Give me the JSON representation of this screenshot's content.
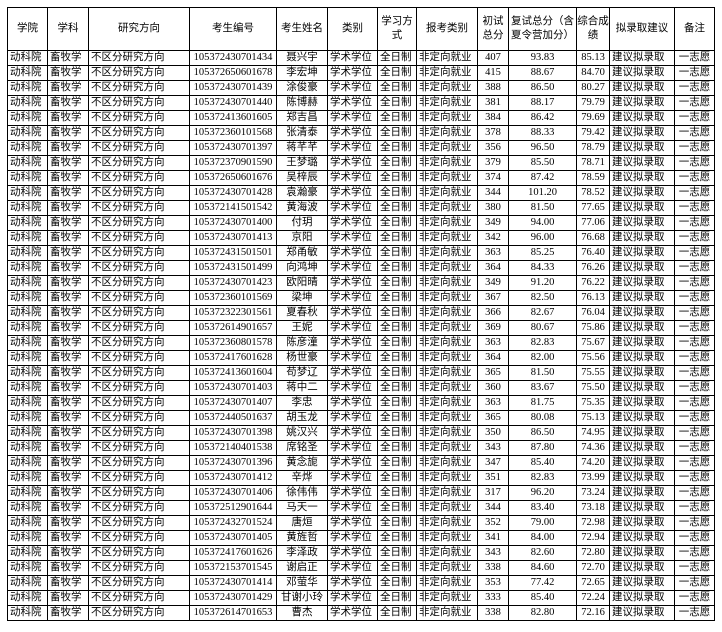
{
  "headers": [
    "学院",
    "学科",
    "研究方向",
    "考生编号",
    "考生姓名",
    "类别",
    "学习方式",
    "报考类别",
    "初试总分",
    "复试总分（含夏令营加分）",
    "综合成绩",
    "拟录取建议",
    "备注"
  ],
  "rows": [
    [
      "动科院",
      "畜牧学",
      "不区分研究方向",
      "105372430701434",
      "聂兴宇",
      "学术学位",
      "全日制",
      "非定向就业",
      "407",
      "93.83",
      "85.13",
      "建议拟录取",
      "一志愿"
    ],
    [
      "动科院",
      "畜牧学",
      "不区分研究方向",
      "105372650601678",
      "李宏坤",
      "学术学位",
      "全日制",
      "非定向就业",
      "415",
      "88.67",
      "84.70",
      "建议拟录取",
      "一志愿"
    ],
    [
      "动科院",
      "畜牧学",
      "不区分研究方向",
      "105372430701439",
      "涂俊豪",
      "学术学位",
      "全日制",
      "非定向就业",
      "388",
      "86.50",
      "80.27",
      "建议拟录取",
      "一志愿"
    ],
    [
      "动科院",
      "畜牧学",
      "不区分研究方向",
      "105372430701440",
      "陈博赫",
      "学术学位",
      "全日制",
      "非定向就业",
      "381",
      "88.17",
      "79.79",
      "建议拟录取",
      "一志愿"
    ],
    [
      "动科院",
      "畜牧学",
      "不区分研究方向",
      "105372413601605",
      "郑吉昌",
      "学术学位",
      "全日制",
      "非定向就业",
      "384",
      "86.42",
      "79.69",
      "建议拟录取",
      "一志愿"
    ],
    [
      "动科院",
      "畜牧学",
      "不区分研究方向",
      "105372360101568",
      "张清泰",
      "学术学位",
      "全日制",
      "非定向就业",
      "378",
      "88.33",
      "79.42",
      "建议拟录取",
      "一志愿"
    ],
    [
      "动科院",
      "畜牧学",
      "不区分研究方向",
      "105372430701397",
      "蒋芊芊",
      "学术学位",
      "全日制",
      "非定向就业",
      "356",
      "96.50",
      "78.79",
      "建议拟录取",
      "一志愿"
    ],
    [
      "动科院",
      "畜牧学",
      "不区分研究方向",
      "105372370901590",
      "王梦璐",
      "学术学位",
      "全日制",
      "非定向就业",
      "379",
      "85.50",
      "78.71",
      "建议拟录取",
      "一志愿"
    ],
    [
      "动科院",
      "畜牧学",
      "不区分研究方向",
      "105372650601676",
      "吴梓辰",
      "学术学位",
      "全日制",
      "非定向就业",
      "374",
      "87.42",
      "78.59",
      "建议拟录取",
      "一志愿"
    ],
    [
      "动科院",
      "畜牧学",
      "不区分研究方向",
      "105372430701428",
      "袁瀚豪",
      "学术学位",
      "全日制",
      "非定向就业",
      "344",
      "101.20",
      "78.52",
      "建议拟录取",
      "一志愿"
    ],
    [
      "动科院",
      "畜牧学",
      "不区分研究方向",
      "105372141501542",
      "黄海波",
      "学术学位",
      "全日制",
      "非定向就业",
      "380",
      "81.50",
      "77.65",
      "建议拟录取",
      "一志愿"
    ],
    [
      "动科院",
      "畜牧学",
      "不区分研究方向",
      "105372430701400",
      "付玥",
      "学术学位",
      "全日制",
      "非定向就业",
      "349",
      "94.00",
      "77.06",
      "建议拟录取",
      "一志愿"
    ],
    [
      "动科院",
      "畜牧学",
      "不区分研究方向",
      "105372430701413",
      "京阳",
      "学术学位",
      "全日制",
      "非定向就业",
      "342",
      "96.00",
      "76.68",
      "建议拟录取",
      "一志愿"
    ],
    [
      "动科院",
      "畜牧学",
      "不区分研究方向",
      "105372431501501",
      "郑甬敏",
      "学术学位",
      "全日制",
      "非定向就业",
      "363",
      "85.25",
      "76.40",
      "建议拟录取",
      "一志愿"
    ],
    [
      "动科院",
      "畜牧学",
      "不区分研究方向",
      "105372431501499",
      "向鸿坤",
      "学术学位",
      "全日制",
      "非定向就业",
      "364",
      "84.33",
      "76.26",
      "建议拟录取",
      "一志愿"
    ],
    [
      "动科院",
      "畜牧学",
      "不区分研究方向",
      "105372430701423",
      "欧阳晴",
      "学术学位",
      "全日制",
      "非定向就业",
      "349",
      "91.20",
      "76.22",
      "建议拟录取",
      "一志愿"
    ],
    [
      "动科院",
      "畜牧学",
      "不区分研究方向",
      "105372360101569",
      "梁坤",
      "学术学位",
      "全日制",
      "非定向就业",
      "367",
      "82.50",
      "76.13",
      "建议拟录取",
      "一志愿"
    ],
    [
      "动科院",
      "畜牧学",
      "不区分研究方向",
      "105372322301561",
      "夏春秋",
      "学术学位",
      "全日制",
      "非定向就业",
      "366",
      "82.67",
      "76.04",
      "建议拟录取",
      "一志愿"
    ],
    [
      "动科院",
      "畜牧学",
      "不区分研究方向",
      "105372614901657",
      "王妮",
      "学术学位",
      "全日制",
      "非定向就业",
      "369",
      "80.67",
      "75.86",
      "建议拟录取",
      "一志愿"
    ],
    [
      "动科院",
      "畜牧学",
      "不区分研究方向",
      "105372360801578",
      "陈彦潼",
      "学术学位",
      "全日制",
      "非定向就业",
      "363",
      "82.83",
      "75.67",
      "建议拟录取",
      "一志愿"
    ],
    [
      "动科院",
      "畜牧学",
      "不区分研究方向",
      "105372417601628",
      "杨世豪",
      "学术学位",
      "全日制",
      "非定向就业",
      "364",
      "82.00",
      "75.56",
      "建议拟录取",
      "一志愿"
    ],
    [
      "动科院",
      "畜牧学",
      "不区分研究方向",
      "105372413601604",
      "苟梦辽",
      "学术学位",
      "全日制",
      "非定向就业",
      "365",
      "81.50",
      "75.55",
      "建议拟录取",
      "一志愿"
    ],
    [
      "动科院",
      "畜牧学",
      "不区分研究方向",
      "105372430701403",
      "蒋中二",
      "学术学位",
      "全日制",
      "非定向就业",
      "360",
      "83.67",
      "75.50",
      "建议拟录取",
      "一志愿"
    ],
    [
      "动科院",
      "畜牧学",
      "不区分研究方向",
      "105372430701407",
      "李忠",
      "学术学位",
      "全日制",
      "非定向就业",
      "363",
      "81.75",
      "75.35",
      "建议拟录取",
      "一志愿"
    ],
    [
      "动科院",
      "畜牧学",
      "不区分研究方向",
      "105372440501637",
      "胡玉龙",
      "学术学位",
      "全日制",
      "非定向就业",
      "365",
      "80.08",
      "75.13",
      "建议拟录取",
      "一志愿"
    ],
    [
      "动科院",
      "畜牧学",
      "不区分研究方向",
      "105372430701398",
      "姚汉兴",
      "学术学位",
      "全日制",
      "非定向就业",
      "350",
      "86.50",
      "74.95",
      "建议拟录取",
      "一志愿"
    ],
    [
      "动科院",
      "畜牧学",
      "不区分研究方向",
      "105372140401538",
      "席铭圣",
      "学术学位",
      "全日制",
      "非定向就业",
      "343",
      "87.80",
      "74.36",
      "建议拟录取",
      "一志愿"
    ],
    [
      "动科院",
      "畜牧学",
      "不区分研究方向",
      "105372430701396",
      "黄念旎",
      "学术学位",
      "全日制",
      "非定向就业",
      "347",
      "85.40",
      "74.20",
      "建议拟录取",
      "一志愿"
    ],
    [
      "动科院",
      "畜牧学",
      "不区分研究方向",
      "105372430701412",
      "辛烨",
      "学术学位",
      "全日制",
      "非定向就业",
      "351",
      "82.83",
      "73.99",
      "建议拟录取",
      "一志愿"
    ],
    [
      "动科院",
      "畜牧学",
      "不区分研究方向",
      "105372430701406",
      "徐伟伟",
      "学术学位",
      "全日制",
      "非定向就业",
      "317",
      "96.20",
      "73.24",
      "建议拟录取",
      "一志愿"
    ],
    [
      "动科院",
      "畜牧学",
      "不区分研究方向",
      "105372512901644",
      "马天一",
      "学术学位",
      "全日制",
      "非定向就业",
      "344",
      "83.40",
      "73.18",
      "建议拟录取",
      "一志愿"
    ],
    [
      "动科院",
      "畜牧学",
      "不区分研究方向",
      "105372432701524",
      "唐烜",
      "学术学位",
      "全日制",
      "非定向就业",
      "352",
      "79.00",
      "72.98",
      "建议拟录取",
      "一志愿"
    ],
    [
      "动科院",
      "畜牧学",
      "不区分研究方向",
      "105372430701405",
      "黄旌哲",
      "学术学位",
      "全日制",
      "非定向就业",
      "341",
      "84.00",
      "72.94",
      "建议拟录取",
      "一志愿"
    ],
    [
      "动科院",
      "畜牧学",
      "不区分研究方向",
      "105372417601626",
      "李泽政",
      "学术学位",
      "全日制",
      "非定向就业",
      "343",
      "82.60",
      "72.80",
      "建议拟录取",
      "一志愿"
    ],
    [
      "动科院",
      "畜牧学",
      "不区分研究方向",
      "105372153701545",
      "谢启正",
      "学术学位",
      "全日制",
      "非定向就业",
      "338",
      "84.60",
      "72.70",
      "建议拟录取",
      "一志愿"
    ],
    [
      "动科院",
      "畜牧学",
      "不区分研究方向",
      "105372430701414",
      "邓萤华",
      "学术学位",
      "全日制",
      "非定向就业",
      "353",
      "77.42",
      "72.65",
      "建议拟录取",
      "一志愿"
    ],
    [
      "动科院",
      "畜牧学",
      "不区分研究方向",
      "105372430701429",
      "甘谢小玲",
      "学术学位",
      "全日制",
      "非定向就业",
      "333",
      "85.40",
      "72.24",
      "建议拟录取",
      "一志愿"
    ],
    [
      "动科院",
      "畜牧学",
      "不区分研究方向",
      "105372614701653",
      "曹杰",
      "学术学位",
      "全日制",
      "非定向就业",
      "338",
      "82.80",
      "72.16",
      "建议拟录取",
      "一志愿"
    ]
  ]
}
